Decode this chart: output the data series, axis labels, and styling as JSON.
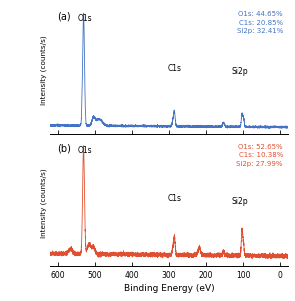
{
  "fig_width": 2.95,
  "fig_height": 3.01,
  "dpi": 100,
  "xlim": [
    620,
    -20
  ],
  "xticks": [
    600,
    500,
    400,
    300,
    200,
    100,
    0
  ],
  "xlabel": "Binding Energy (eV)",
  "ylabel": "Intensity (counts/s)",
  "color_a": "#4472C4",
  "color_b": "#E05030",
  "panel_a_label": "(a)",
  "panel_b_label": "(b)",
  "annotation_a": "O1s: 44.65%\nC1s: 20.85%\nSi2p: 32.41%",
  "annotation_b": "O1s: 52.65%\nC1s: 10.38%\nSi2p: 27.99%",
  "face_color": "white"
}
